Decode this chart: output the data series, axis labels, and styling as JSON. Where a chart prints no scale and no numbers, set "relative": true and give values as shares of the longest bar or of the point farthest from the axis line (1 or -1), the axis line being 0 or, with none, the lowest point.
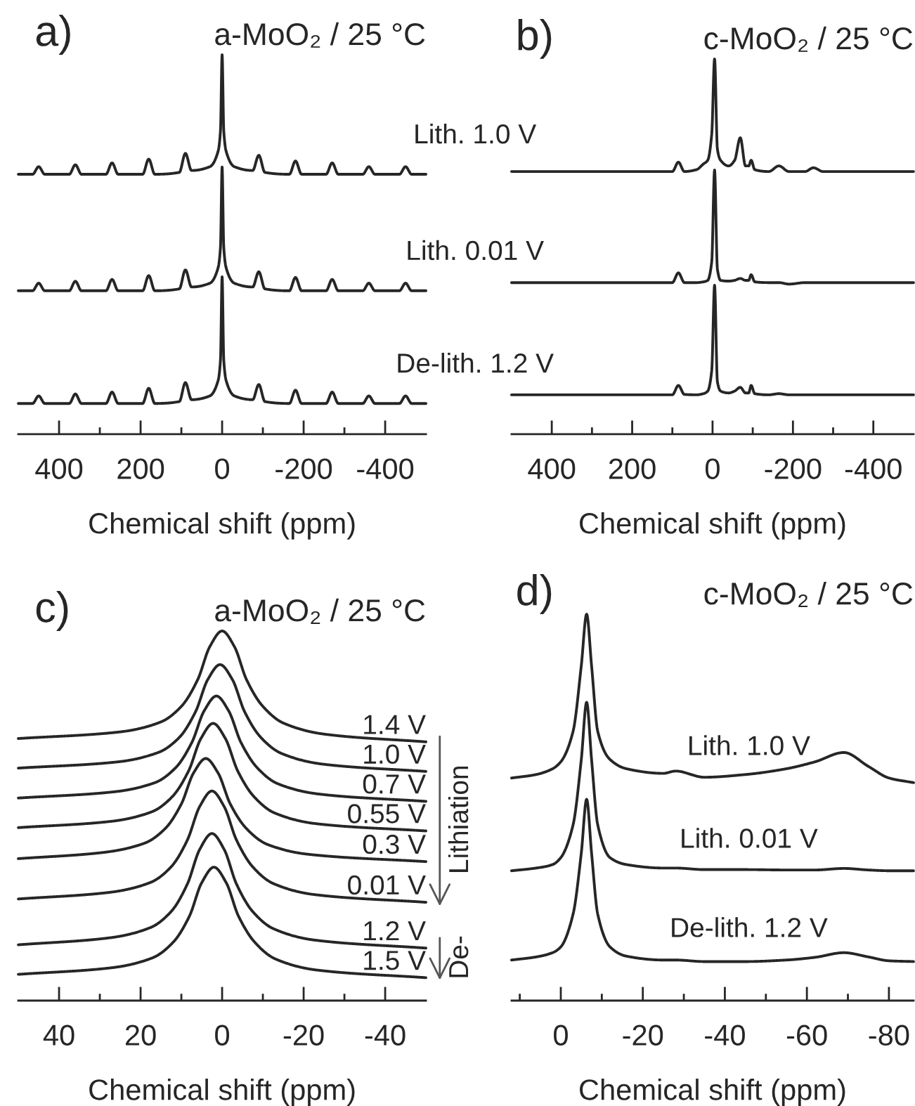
{
  "chart_data": [
    {
      "type": "line",
      "title": "a-MoO₂ / 25 °C",
      "xlabel": "Chemical shift (ppm)",
      "annotations": [
        "a)"
      ],
      "relative": true,
      "xlim": [
        500,
        -500
      ],
      "xticks": [
        400,
        {
          "value": 300,
          "label": null
        },
        200,
        {
          "value": 100,
          "label": null
        },
        0,
        {
          "value": -100,
          "label": null
        },
        -200,
        {
          "value": -300,
          "label": null
        },
        -400
      ],
      "x": [
        500,
        465,
        450,
        435,
        375,
        360,
        345,
        285,
        270,
        255,
        195,
        180,
        165,
        105,
        90,
        75,
        30,
        10,
        4,
        0,
        -4,
        -10,
        -30,
        -75,
        -90,
        -105,
        -165,
        -180,
        -195,
        -255,
        -270,
        -285,
        -345,
        -360,
        -375,
        -435,
        -450,
        -465,
        -500
      ],
      "series": [
        {
          "name": "Lith. 1.0 V",
          "color": "#262626",
          "values": [
            0.685,
            0.685,
            0.705,
            0.685,
            0.685,
            0.71,
            0.685,
            0.685,
            0.715,
            0.685,
            0.685,
            0.725,
            0.685,
            0.69,
            0.74,
            0.695,
            0.705,
            0.745,
            0.8,
            1.0,
            0.8,
            0.745,
            0.705,
            0.695,
            0.735,
            0.69,
            0.685,
            0.72,
            0.685,
            0.685,
            0.715,
            0.685,
            0.685,
            0.705,
            0.685,
            0.685,
            0.705,
            0.685,
            0.685
          ]
        },
        {
          "name": "Lith. 0.01 V",
          "color": "#262626",
          "values": [
            0.378,
            0.378,
            0.398,
            0.378,
            0.378,
            0.403,
            0.378,
            0.378,
            0.408,
            0.378,
            0.378,
            0.418,
            0.378,
            0.383,
            0.433,
            0.388,
            0.398,
            0.438,
            0.493,
            0.704,
            0.493,
            0.438,
            0.398,
            0.388,
            0.428,
            0.383,
            0.378,
            0.413,
            0.378,
            0.378,
            0.408,
            0.378,
            0.378,
            0.398,
            0.378,
            0.378,
            0.398,
            0.378,
            0.378
          ]
        },
        {
          "name": "De-lith. 1.2 V",
          "color": "#262626",
          "values": [
            0.081,
            0.081,
            0.101,
            0.081,
            0.081,
            0.106,
            0.081,
            0.081,
            0.111,
            0.081,
            0.081,
            0.121,
            0.081,
            0.086,
            0.136,
            0.091,
            0.101,
            0.141,
            0.196,
            0.415,
            0.196,
            0.141,
            0.101,
            0.091,
            0.131,
            0.086,
            0.081,
            0.116,
            0.081,
            0.081,
            0.111,
            0.081,
            0.081,
            0.101,
            0.081,
            0.081,
            0.101,
            0.081,
            0.081
          ]
        }
      ]
    },
    {
      "type": "line",
      "title": "c-MoO₂ / 25 °C",
      "xlabel": "Chemical shift (ppm)",
      "annotations": [
        "b)"
      ],
      "relative": true,
      "xlim": [
        500,
        -500
      ],
      "xticks": [
        400,
        {
          "value": 300,
          "label": null
        },
        200,
        {
          "value": 100,
          "label": null
        },
        0,
        {
          "value": -100,
          "label": null
        },
        -200,
        {
          "value": -300,
          "label": null
        },
        -400
      ],
      "x": [
        500,
        200,
        100,
        85,
        70,
        40,
        23,
        12,
        2,
        -5,
        -12,
        -20,
        -40,
        -55,
        -69,
        -82,
        -90,
        -96,
        -105,
        -140,
        -165,
        -190,
        -230,
        -251,
        -275,
        -500
      ],
      "series": [
        {
          "color": "#262626",
          "values": [
            0.7,
            0.7,
            0.7,
            0.725,
            0.7,
            0.705,
            0.72,
            0.73,
            0.8,
            1.0,
            0.76,
            0.73,
            0.715,
            0.73,
            0.79,
            0.715,
            0.715,
            0.73,
            0.705,
            0.7,
            0.715,
            0.7,
            0.7,
            0.71,
            0.7,
            0.7
          ]
        },
        {
          "color": "#262626",
          "values": [
            0.404,
            0.404,
            0.404,
            0.43,
            0.404,
            0.404,
            0.406,
            0.41,
            0.46,
            0.704,
            0.44,
            0.41,
            0.408,
            0.41,
            0.415,
            0.41,
            0.41,
            0.425,
            0.406,
            0.404,
            0.404,
            0.4,
            0.404,
            0.404,
            0.404,
            0.404
          ]
        },
        {
          "color": "#262626",
          "values": [
            0.105,
            0.105,
            0.105,
            0.13,
            0.106,
            0.105,
            0.108,
            0.115,
            0.17,
            0.397,
            0.14,
            0.115,
            0.11,
            0.115,
            0.125,
            0.11,
            0.11,
            0.13,
            0.108,
            0.105,
            0.108,
            0.105,
            0.105,
            0.105,
            0.105,
            0.105
          ]
        }
      ]
    },
    {
      "type": "line",
      "title": "a-MoO₂ / 25 °C",
      "xlabel": "Chemical shift (ppm)",
      "annotations": [
        "c)",
        "Lithiation",
        "De-"
      ],
      "relative": true,
      "xlim": [
        50,
        -50
      ],
      "xticks": [
        40,
        {
          "value": 30,
          "label": null
        },
        20,
        {
          "value": 10,
          "label": null
        },
        0,
        {
          "value": -10,
          "label": null
        },
        -20,
        {
          "value": -30,
          "label": null
        },
        -40
      ],
      "series": [
        {
          "name": "1.4 V",
          "color": "#262626",
          "x": [
            50,
            25,
            15,
            10,
            6,
            3,
            0,
            -3,
            -6,
            -10,
            -15,
            -25,
            -50
          ],
          "values": [
            0.709,
            0.727,
            0.754,
            0.796,
            0.868,
            0.958,
            1.0,
            0.958,
            0.868,
            0.796,
            0.751,
            0.721,
            0.7
          ]
        },
        {
          "name": "1.0 V",
          "color": "#262626",
          "x": [
            50,
            25.5,
            15.5,
            10.5,
            6.5,
            3.5,
            0.5,
            -2.5,
            -5.5,
            -9.5,
            -14.5,
            -24.5,
            -50
          ],
          "values": [
            0.629,
            0.646,
            0.672,
            0.712,
            0.782,
            0.869,
            0.909,
            0.869,
            0.782,
            0.712,
            0.669,
            0.64,
            0.62
          ]
        },
        {
          "name": "0.7 V",
          "color": "#262626",
          "x": [
            50,
            26.4,
            16.4,
            11.4,
            7.4,
            4.4,
            1.4,
            -1.6,
            -4.6,
            -8.6,
            -13.6,
            -23.6,
            -50
          ],
          "values": [
            0.548,
            0.565,
            0.59,
            0.63,
            0.699,
            0.784,
            0.824,
            0.784,
            0.699,
            0.63,
            0.587,
            0.559,
            0.539
          ]
        },
        {
          "name": "0.55 V",
          "color": "#262626",
          "x": [
            50,
            27.2,
            17.2,
            12.2,
            8.2,
            5.2,
            2.2,
            -0.8,
            -3.8,
            -7.8,
            -12.8,
            -22.8,
            -50
          ],
          "values": [
            0.468,
            0.485,
            0.511,
            0.552,
            0.622,
            0.709,
            0.75,
            0.709,
            0.622,
            0.552,
            0.508,
            0.479,
            0.459
          ]
        },
        {
          "name": "0.3 V",
          "color": "#262626",
          "x": [
            50,
            29,
            19,
            14,
            10,
            7,
            4,
            1,
            -2,
            -6,
            -11,
            -21,
            -50
          ],
          "values": [
            0.384,
            0.401,
            0.426,
            0.465,
            0.532,
            0.616,
            0.655,
            0.616,
            0.532,
            0.465,
            0.423,
            0.396,
            0.376
          ]
        },
        {
          "name": "0.01 V",
          "color": "#262626",
          "x": [
            50,
            27.5,
            17.5,
            12.5,
            8.5,
            5.5,
            2.5,
            -0.5,
            -3.5,
            -7.5,
            -12.5,
            -22.5,
            -50
          ],
          "values": [
            0.275,
            0.293,
            0.32,
            0.362,
            0.435,
            0.525,
            0.567,
            0.525,
            0.435,
            0.362,
            0.317,
            0.287,
            0.266
          ]
        },
        {
          "name": "1.2 V",
          "color": "#262626",
          "x": [
            50,
            27.5,
            17.5,
            12.5,
            8.5,
            5.5,
            2.5,
            -0.5,
            -3.5,
            -7.5,
            -12.5,
            -22.5,
            -50
          ],
          "values": [
            0.151,
            0.17,
            0.198,
            0.241,
            0.316,
            0.409,
            0.452,
            0.409,
            0.316,
            0.241,
            0.195,
            0.164,
            0.142
          ]
        },
        {
          "name": "1.5 V",
          "color": "#262626",
          "x": [
            50,
            27,
            17,
            12,
            8,
            5,
            2,
            -1,
            -4,
            -8,
            -13,
            -23,
            -50
          ],
          "values": [
            0.071,
            0.089,
            0.116,
            0.158,
            0.229,
            0.319,
            0.361,
            0.319,
            0.229,
            0.158,
            0.113,
            0.083,
            0.062
          ]
        }
      ]
    },
    {
      "type": "line",
      "title": "c-MoO₂ / 25 °C",
      "xlabel": "Chemical shift (ppm)",
      "annotations": [
        "d)"
      ],
      "relative": true,
      "xlim": [
        12,
        -86
      ],
      "xticks": [
        {
          "value": 10,
          "label": null
        },
        0,
        {
          "value": -10,
          "label": null
        },
        -20,
        {
          "value": -30,
          "label": null
        },
        -40,
        {
          "value": -50,
          "label": null
        },
        -60,
        {
          "value": -70,
          "label": null
        },
        -80
      ],
      "x": [
        12,
        6,
        2,
        0,
        -3,
        -5,
        -6.3,
        -7.5,
        -9,
        -12,
        -16,
        -25,
        -28,
        -35,
        -45,
        -55,
        -62,
        -69,
        -75,
        -80,
        -86
      ],
      "series": [
        {
          "name": "Lith. 1.0 V",
          "color": "#262626",
          "values": [
            0.576,
            0.585,
            0.6,
            0.618,
            0.697,
            0.867,
            1.0,
            0.867,
            0.697,
            0.624,
            0.6,
            0.588,
            0.594,
            0.578,
            0.585,
            0.6,
            0.618,
            0.642,
            0.606,
            0.576,
            0.564
          ]
        },
        {
          "name": "Lith. 0.01 V",
          "color": "#262626",
          "values": [
            0.336,
            0.343,
            0.352,
            0.37,
            0.455,
            0.624,
            0.772,
            0.624,
            0.455,
            0.37,
            0.352,
            0.343,
            0.343,
            0.339,
            0.339,
            0.338,
            0.338,
            0.342,
            0.338,
            0.336,
            0.336
          ]
        },
        {
          "name": "De-lith. 1.2 V",
          "color": "#262626",
          "values": [
            0.105,
            0.113,
            0.124,
            0.139,
            0.224,
            0.382,
            0.521,
            0.382,
            0.224,
            0.139,
            0.115,
            0.105,
            0.105,
            0.101,
            0.101,
            0.105,
            0.112,
            0.124,
            0.113,
            0.103,
            0.101
          ]
        }
      ]
    }
  ]
}
